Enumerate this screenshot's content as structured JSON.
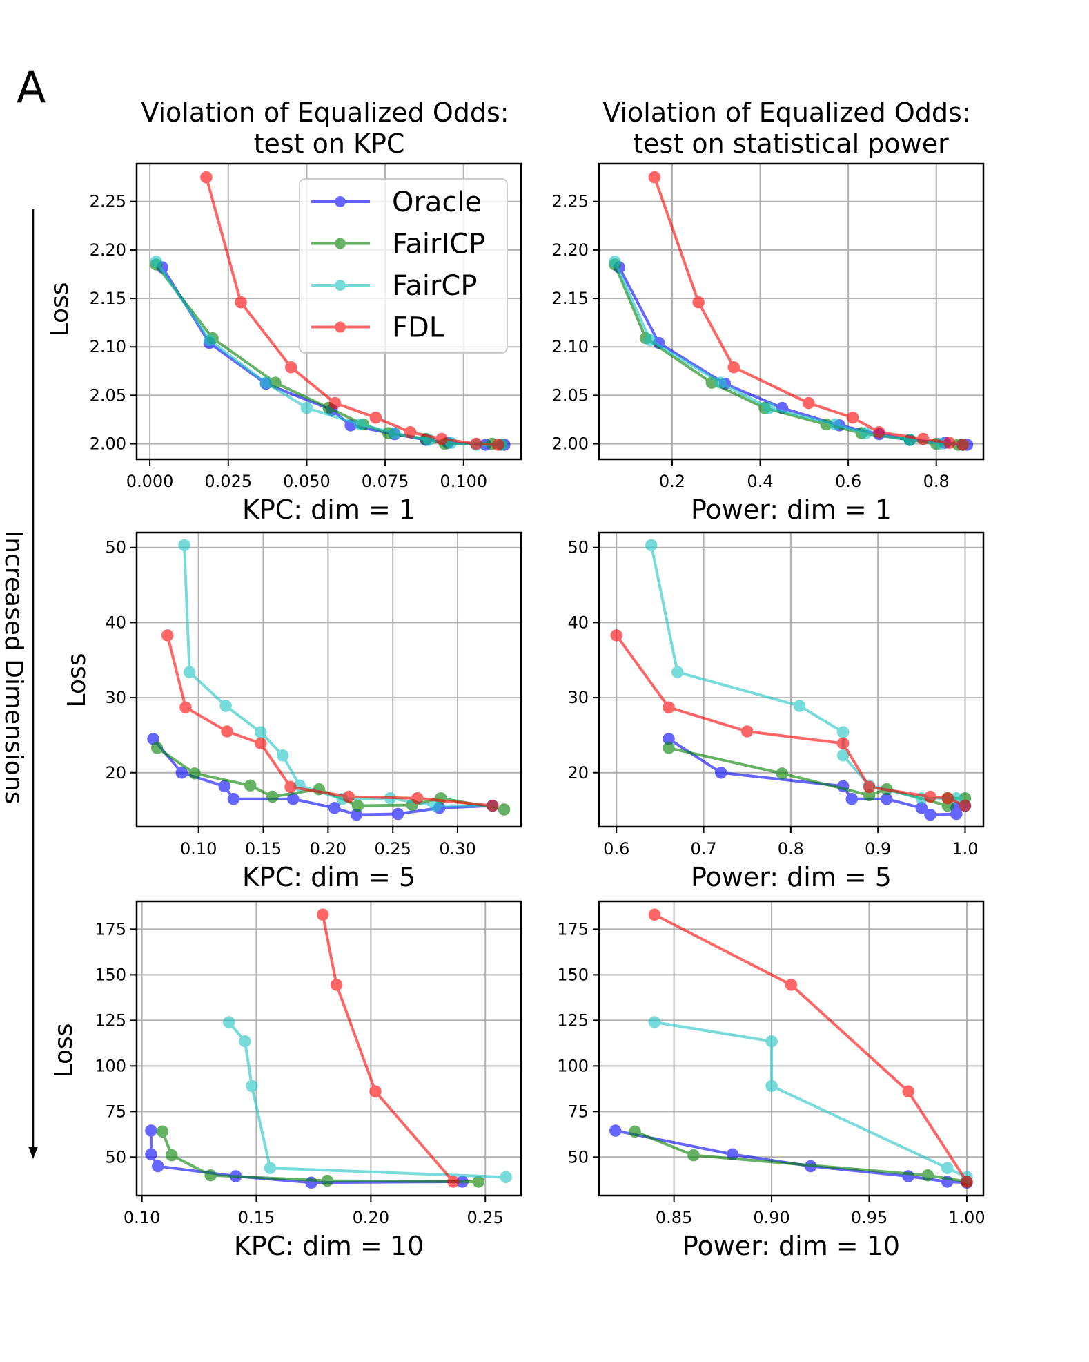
{
  "panel_letter": "A",
  "side_label": "Increased Dimensions",
  "col_titles": [
    [
      "Violation of Equalized Odds:",
      "test on KPC"
    ],
    [
      "Violation of Equalized Odds:",
      "test on statistical power"
    ]
  ],
  "legend": [
    "Oracle",
    "FairICP",
    "FairCP",
    "FDL"
  ],
  "colors": {
    "Oracle": "#0000ff",
    "FairICP": "#008000",
    "FairCP": "#1fc4c4",
    "FDL": "#ff0000"
  },
  "chart_data": [
    {
      "type": "line",
      "xlabel": "KPC: dim = 1",
      "ylabel": "Loss",
      "xlim": [
        -0.0042,
        0.1183
      ],
      "ylim": [
        1.984,
        2.289
      ],
      "grid": true,
      "legend_placement": "upper-right",
      "xticks": [
        0,
        0.025,
        0.05,
        0.075,
        0.1
      ],
      "xtick_labels": [
        "0.000",
        "0.025",
        "0.050",
        "0.075",
        "0.100"
      ],
      "yticks": [
        2.0,
        2.05,
        2.1,
        2.15,
        2.2,
        2.25
      ],
      "ytick_labels": [
        "2.00",
        "2.05",
        "2.10",
        "2.15",
        "2.20",
        "2.25"
      ],
      "series": [
        {
          "name": "Oracle",
          "x": [
            0.004,
            0.019,
            0.037,
            0.058,
            0.064,
            0.078,
            0.088,
            0.095,
            0.107,
            0.113
          ],
          "y": [
            2.182,
            2.104,
            2.062,
            2.035,
            2.019,
            2.01,
            2.004,
            2.001,
            1.999,
            1.999
          ]
        },
        {
          "name": "FairICP",
          "x": [
            0.002,
            0.02,
            0.04,
            0.057,
            0.068,
            0.076,
            0.088,
            0.094,
            0.109,
            0.112
          ],
          "y": [
            2.185,
            2.109,
            2.063,
            2.037,
            2.02,
            2.011,
            2.005,
            2.0,
            2.0,
            1.999
          ]
        },
        {
          "name": "FairCP",
          "x": [
            0.002,
            0.019,
            0.037,
            0.05,
            0.067,
            0.078,
            0.089,
            0.096,
            0.104,
            0.112
          ],
          "y": [
            2.188,
            2.107,
            2.063,
            2.037,
            2.02,
            2.011,
            2.004,
            2.001,
            1.999,
            1.999
          ]
        },
        {
          "name": "FDL",
          "x": [
            0.018,
            0.029,
            0.045,
            0.059,
            0.072,
            0.083,
            0.093,
            0.104,
            0.111
          ],
          "y": [
            2.275,
            2.146,
            2.079,
            2.042,
            2.027,
            2.012,
            2.005,
            2.0,
            1.999
          ]
        }
      ]
    },
    {
      "type": "line",
      "xlabel": "Power: dim = 1",
      "ylabel": "",
      "xlim": [
        0.034,
        0.907
      ],
      "ylim": [
        1.984,
        2.289
      ],
      "grid": true,
      "xticks": [
        0.2,
        0.4,
        0.6,
        0.8
      ],
      "xtick_labels": [
        "0.2",
        "0.4",
        "0.6",
        "0.8"
      ],
      "yticks": [
        2.0,
        2.05,
        2.1,
        2.15,
        2.2,
        2.25
      ],
      "ytick_labels": [
        "2.00",
        "2.05",
        "2.10",
        "2.15",
        "2.20",
        "2.25"
      ],
      "series": [
        {
          "name": "Oracle",
          "x": [
            0.08,
            0.17,
            0.32,
            0.45,
            0.58,
            0.67,
            0.74,
            0.82,
            0.86,
            0.87
          ],
          "y": [
            2.182,
            2.104,
            2.062,
            2.037,
            2.019,
            2.01,
            2.004,
            2.001,
            1.999,
            1.999
          ]
        },
        {
          "name": "FairICP",
          "x": [
            0.07,
            0.14,
            0.29,
            0.41,
            0.55,
            0.63,
            0.74,
            0.8,
            0.85,
            0.86
          ],
          "y": [
            2.185,
            2.109,
            2.063,
            2.037,
            2.02,
            2.011,
            2.004,
            2.0,
            1.999,
            1.999
          ]
        },
        {
          "name": "FairCP",
          "x": [
            0.07,
            0.15,
            0.31,
            0.42,
            0.57,
            0.64,
            0.74,
            0.81,
            0.86
          ],
          "y": [
            2.188,
            2.107,
            2.063,
            2.037,
            2.02,
            2.011,
            2.004,
            2.0,
            1.999
          ]
        },
        {
          "name": "FDL",
          "x": [
            0.16,
            0.26,
            0.34,
            0.51,
            0.61,
            0.67,
            0.77,
            0.83,
            0.86
          ],
          "y": [
            2.275,
            2.146,
            2.079,
            2.042,
            2.027,
            2.012,
            2.005,
            2.001,
            1.999
          ]
        }
      ]
    },
    {
      "type": "line",
      "xlabel": "KPC: dim = 5",
      "ylabel": "Loss",
      "xlim": [
        0.0522,
        0.349
      ],
      "ylim": [
        12.8,
        52.0
      ],
      "grid": true,
      "xticks": [
        0.1,
        0.15,
        0.2,
        0.25,
        0.3
      ],
      "xtick_labels": [
        "0.10",
        "0.15",
        "0.20",
        "0.25",
        "0.30"
      ],
      "yticks": [
        20,
        30,
        40,
        50
      ],
      "ytick_labels": [
        "20",
        "30",
        "40",
        "50"
      ],
      "series": [
        {
          "name": "Oracle",
          "x": [
            0.065,
            0.087,
            0.12,
            0.127,
            0.173,
            0.205,
            0.222,
            0.254,
            0.286,
            0.327
          ],
          "y": [
            24.5,
            20,
            18.2,
            16.5,
            16.5,
            15.3,
            14.4,
            14.5,
            15.3,
            15.6
          ]
        },
        {
          "name": "FairICP",
          "x": [
            0.068,
            0.097,
            0.14,
            0.157,
            0.193,
            0.223,
            0.265,
            0.287,
            0.336
          ],
          "y": [
            23.3,
            19.9,
            18.3,
            16.8,
            17.8,
            15.6,
            15.7,
            16.6,
            15.1
          ]
        },
        {
          "name": "FairCP",
          "x": [
            0.089,
            0.093,
            0.121,
            0.148,
            0.165,
            0.178,
            0.211,
            0.248,
            0.283,
            0.327
          ],
          "y": [
            50.3,
            33.4,
            28.9,
            25.4,
            22.3,
            18.3,
            16.5,
            16.6,
            15.6,
            15.6
          ]
        },
        {
          "name": "FDL",
          "x": [
            0.076,
            0.09,
            0.122,
            0.148,
            0.171,
            0.216,
            0.269,
            0.327
          ],
          "y": [
            38.3,
            28.7,
            25.5,
            23.9,
            18.1,
            16.8,
            16.6,
            15.6
          ]
        }
      ]
    },
    {
      "type": "line",
      "xlabel": "Power: dim = 5",
      "ylabel": "",
      "xlim": [
        0.58,
        1.021
      ],
      "ylim": [
        12.8,
        52.0
      ],
      "grid": true,
      "xticks": [
        0.6,
        0.7,
        0.8,
        0.9,
        1.0
      ],
      "xtick_labels": [
        "0.6",
        "0.7",
        "0.8",
        "0.9",
        "1.0"
      ],
      "yticks": [
        20,
        30,
        40,
        50
      ],
      "ytick_labels": [
        "20",
        "30",
        "40",
        "50"
      ],
      "series": [
        {
          "name": "Oracle",
          "x": [
            0.66,
            0.72,
            0.86,
            0.87,
            0.91,
            0.95,
            0.96,
            0.99,
            0.99,
            1.0
          ],
          "y": [
            24.5,
            20,
            18.2,
            16.5,
            16.5,
            15.3,
            14.4,
            14.5,
            15.3,
            15.6
          ]
        },
        {
          "name": "FairICP",
          "x": [
            0.66,
            0.79,
            0.89,
            0.91,
            0.98,
            0.98,
            1.0
          ],
          "y": [
            23.3,
            19.9,
            17.0,
            17.8,
            15.6,
            16.6,
            16.6
          ]
        },
        {
          "name": "FairCP",
          "x": [
            0.64,
            0.67,
            0.81,
            0.86,
            0.86,
            0.89,
            0.95,
            0.99,
            1.0
          ],
          "y": [
            50.3,
            33.4,
            28.9,
            25.4,
            22.3,
            18.3,
            16.6,
            16.6,
            15.6
          ]
        },
        {
          "name": "FDL",
          "x": [
            0.6,
            0.66,
            0.75,
            0.86,
            0.89,
            0.96,
            0.98,
            1.0
          ],
          "y": [
            38.3,
            28.7,
            25.5,
            23.9,
            18.1,
            16.8,
            16.6,
            15.6
          ]
        }
      ]
    },
    {
      "type": "line",
      "xlabel": "KPC: dim = 10",
      "ylabel": "Loss",
      "xlim": [
        0.0977,
        0.2656
      ],
      "ylim": [
        28.9,
        190.3
      ],
      "grid": true,
      "xticks": [
        0.1,
        0.15,
        0.2,
        0.25
      ],
      "xtick_labels": [
        "0.10",
        "0.15",
        "0.20",
        "0.25"
      ],
      "yticks": [
        50,
        75,
        100,
        125,
        150,
        175
      ],
      "ytick_labels": [
        "50",
        "75",
        "100",
        "125",
        "150",
        "175"
      ],
      "series": [
        {
          "name": "Oracle",
          "x": [
            0.104,
            0.104,
            0.107,
            0.141,
            0.174,
            0.24
          ],
          "y": [
            64.5,
            51.5,
            45,
            39.5,
            36,
            36.5
          ]
        },
        {
          "name": "FairICP",
          "x": [
            0.109,
            0.113,
            0.13,
            0.181,
            0.247
          ],
          "y": [
            64,
            51,
            40,
            37,
            36.5
          ]
        },
        {
          "name": "FairCP",
          "x": [
            0.138,
            0.145,
            0.148,
            0.156,
            0.259
          ],
          "y": [
            124,
            113.5,
            89,
            44,
            39
          ]
        },
        {
          "name": "FDL",
          "x": [
            0.179,
            0.185,
            0.202,
            0.236
          ],
          "y": [
            183,
            144.5,
            86,
            36.5
          ]
        }
      ]
    },
    {
      "type": "line",
      "xlabel": "Power: dim = 10",
      "ylabel": "",
      "xlim": [
        0.8116,
        1.0085
      ],
      "ylim": [
        28.9,
        190.3
      ],
      "grid": true,
      "xticks": [
        0.85,
        0.9,
        0.95,
        1.0
      ],
      "xtick_labels": [
        "0.85",
        "0.90",
        "0.95",
        "1.00"
      ],
      "yticks": [
        50,
        75,
        100,
        125,
        150,
        175
      ],
      "ytick_labels": [
        "50",
        "75",
        "100",
        "125",
        "150",
        "175"
      ],
      "series": [
        {
          "name": "Oracle",
          "x": [
            0.82,
            0.88,
            0.92,
            0.97,
            0.99,
            1.0
          ],
          "y": [
            64.5,
            51.5,
            45,
            39.5,
            36.5,
            36
          ]
        },
        {
          "name": "FairICP",
          "x": [
            0.83,
            0.86,
            0.98,
            1.0
          ],
          "y": [
            64,
            51,
            40,
            36.5
          ]
        },
        {
          "name": "FairCP",
          "x": [
            0.84,
            0.9,
            0.9,
            0.99,
            1.0
          ],
          "y": [
            124,
            113.5,
            89,
            44,
            39
          ]
        },
        {
          "name": "FDL",
          "x": [
            0.84,
            0.91,
            0.97,
            1.0
          ],
          "y": [
            183,
            144.5,
            86,
            36.5
          ]
        }
      ]
    }
  ]
}
